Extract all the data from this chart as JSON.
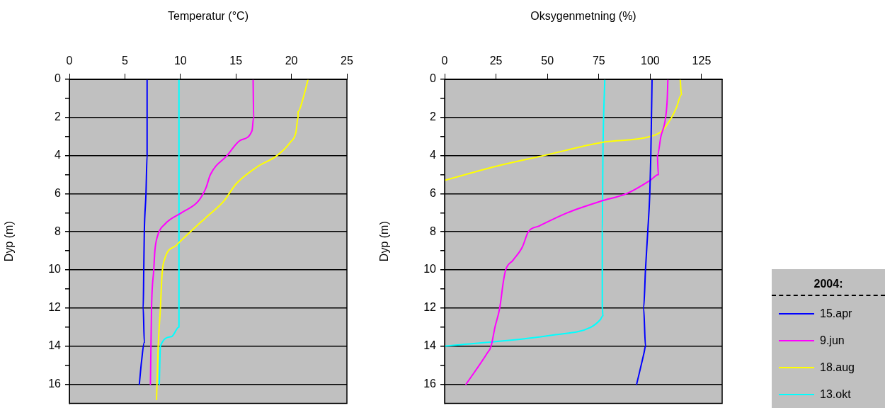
{
  "chart_data": [
    {
      "type": "line",
      "title": "Temperatur (°C)",
      "ylabel": "Dyp (m)",
      "xlim": [
        0,
        25
      ],
      "xticks": [
        0,
        5,
        10,
        15,
        20,
        25
      ],
      "ylim": [
        17,
        0
      ],
      "yticks": [
        0,
        {
          "value": 1,
          "label": null
        },
        2,
        {
          "value": 3,
          "label": null
        },
        4,
        {
          "value": 5,
          "label": null
        },
        6,
        {
          "value": 7,
          "label": null
        },
        8,
        {
          "value": 9,
          "label": null
        },
        10,
        {
          "value": 11,
          "label": null
        },
        12,
        {
          "value": 13,
          "label": null
        },
        14,
        {
          "value": 15,
          "label": null
        },
        16
      ],
      "grid": "y",
      "legend": false,
      "marker": "none",
      "line_style": "solid",
      "series": [
        {
          "color": "#0000ff",
          "x": [
            7.0,
            7.0,
            6.9,
            6.75,
            6.7,
            6.65,
            6.75,
            6.5,
            6.3
          ],
          "values": [
            0,
            4,
            6,
            8,
            10,
            12,
            13.8,
            14.8,
            16
          ]
        },
        {
          "color": "#ff00ff",
          "x": [
            16.55,
            16.6,
            16.45,
            15.4,
            14.2,
            12.7,
            12.3,
            11.6,
            10.1,
            8.6,
            7.95,
            7.7,
            7.6,
            7.4,
            7.3
          ],
          "values": [
            0,
            2,
            2.7,
            3.2,
            4,
            5,
            5.7,
            6.4,
            7,
            7.6,
            8.2,
            9,
            10,
            12,
            16
          ]
        },
        {
          "color": "#ffff00",
          "x": [
            21.5,
            21.05,
            20.6,
            20.6,
            20.4,
            19.9,
            18.7,
            16.9,
            15.0,
            13.9,
            12.4,
            10.9,
            9.65,
            8.6,
            8.35,
            8.2,
            8.0,
            7.85
          ],
          "values": [
            0,
            1,
            1.7,
            2,
            2.8,
            3.3,
            4,
            4.6,
            5.5,
            6.4,
            7.2,
            8,
            8.7,
            9.4,
            10.2,
            12,
            14,
            16.8
          ]
        },
        {
          "color": "#00ffff",
          "x": [
            9.87,
            9.87,
            9.87,
            9.2,
            8.2,
            8.1
          ],
          "values": [
            0,
            12.8,
            13,
            13.5,
            14,
            16
          ]
        }
      ]
    },
    {
      "type": "line",
      "title": "Oksygenmetning (%)",
      "ylabel": "Dyp (m)",
      "xlim": [
        0,
        135
      ],
      "xticks": [
        0,
        25,
        50,
        75,
        100,
        125
      ],
      "ylim": [
        17,
        0
      ],
      "yticks": [
        0,
        {
          "value": 1,
          "label": null
        },
        2,
        {
          "value": 3,
          "label": null
        },
        4,
        {
          "value": 5,
          "label": null
        },
        6,
        {
          "value": 7,
          "label": null
        },
        8,
        {
          "value": 9,
          "label": null
        },
        10,
        {
          "value": 11,
          "label": null
        },
        12,
        {
          "value": 13,
          "label": null
        },
        14,
        {
          "value": 15,
          "label": null
        },
        16
      ],
      "grid": "y",
      "legend": "bottom right",
      "legend_title": "2004:",
      "marker": "none",
      "line_style": "solid",
      "series": [
        {
          "name": "15.apr",
          "color": "#0000ff",
          "x": [
            100.9,
            100.3,
            99.8,
            98.8,
            97.7,
            96.8,
            97.7,
            97.1,
            93.4
          ],
          "values": [
            0,
            4,
            6,
            8,
            10,
            12,
            14,
            14.3,
            16
          ]
        },
        {
          "name": "9.jun",
          "color": "#ff00ff",
          "x": [
            108.6,
            108.3,
            107.5,
            105.2,
            103.5,
            103.7,
            104,
            100,
            88.5,
            75.8,
            59.7,
            45.9,
            40.7,
            37.8,
            33.2,
            29.7,
            28.6,
            26.8,
            24.5,
            22.6,
            20.5,
            10.4
          ],
          "values": [
            0,
            1,
            2,
            3,
            4,
            4.5,
            5,
            5.3,
            6,
            6.4,
            7,
            7.7,
            8,
            8.8,
            9.5,
            10,
            10.6,
            12,
            13,
            14,
            14.4,
            16
          ]
        },
        {
          "name": "18.aug",
          "color": "#ffff00",
          "x": [
            114.6,
            115.2,
            112.7,
            110.4,
            105.8,
            100,
            77,
            48.2,
            27.4,
            0
          ],
          "values": [
            0,
            0.8,
            1.5,
            2,
            2.7,
            3,
            3.3,
            4,
            4.5,
            5.3
          ]
        },
        {
          "name": "13.okt",
          "color": "#00ffff",
          "x": [
            77.9,
            77,
            76.7,
            76.7,
            77,
            75.8,
            71.2,
            53.9,
            0
          ],
          "values": [
            0,
            4,
            8,
            12,
            12.4,
            12.6,
            13,
            13.4,
            14
          ]
        }
      ]
    }
  ]
}
